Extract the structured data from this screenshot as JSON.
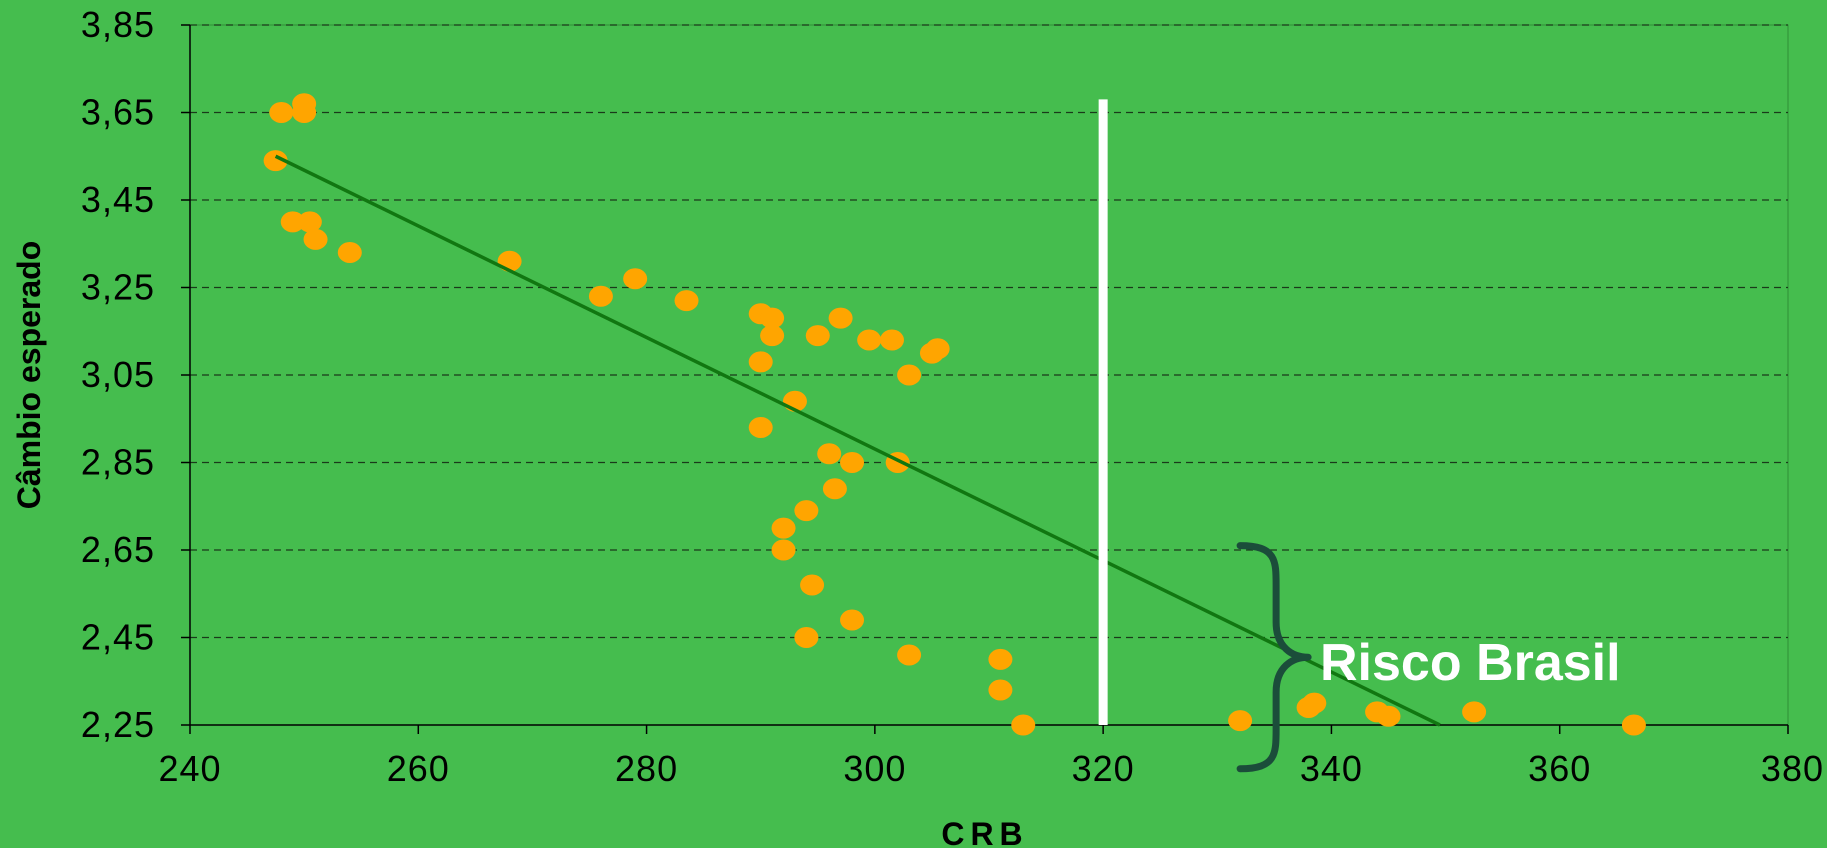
{
  "chart_data": {
    "type": "scatter",
    "title": "",
    "xlabel": "CRB",
    "ylabel": "Câmbio esperado",
    "xlim": [
      240,
      380
    ],
    "ylim": [
      2.25,
      3.85
    ],
    "x_ticks": [
      240,
      260,
      280,
      300,
      320,
      340,
      360,
      380
    ],
    "y_ticks": [
      2.25,
      2.45,
      2.65,
      2.85,
      3.05,
      3.25,
      3.45,
      3.65,
      3.85
    ],
    "x_tick_labels": [
      "240",
      "260",
      "280",
      "300",
      "320",
      "340",
      "360",
      "380"
    ],
    "y_tick_labels": [
      "2,25",
      "2,45",
      "2,65",
      "2,85",
      "3,05",
      "3,25",
      "3,45",
      "3,65",
      "3,85"
    ],
    "grid": "horizontal dashed",
    "legend": "none",
    "points": [
      {
        "x": 248,
        "y": 3.65
      },
      {
        "x": 250,
        "y": 3.67
      },
      {
        "x": 250,
        "y": 3.65
      },
      {
        "x": 247.5,
        "y": 3.54
      },
      {
        "x": 249,
        "y": 3.4
      },
      {
        "x": 250.5,
        "y": 3.4
      },
      {
        "x": 251,
        "y": 3.36
      },
      {
        "x": 254,
        "y": 3.33
      },
      {
        "x": 268,
        "y": 3.31
      },
      {
        "x": 276,
        "y": 3.23
      },
      {
        "x": 279,
        "y": 3.27
      },
      {
        "x": 283.5,
        "y": 3.22
      },
      {
        "x": 290,
        "y": 3.19
      },
      {
        "x": 291,
        "y": 3.18
      },
      {
        "x": 291,
        "y": 3.14
      },
      {
        "x": 290,
        "y": 3.08
      },
      {
        "x": 295,
        "y": 3.14
      },
      {
        "x": 297,
        "y": 3.18
      },
      {
        "x": 299.5,
        "y": 3.13
      },
      {
        "x": 301.5,
        "y": 3.13
      },
      {
        "x": 303,
        "y": 3.05
      },
      {
        "x": 305,
        "y": 3.1
      },
      {
        "x": 305.5,
        "y": 3.11
      },
      {
        "x": 293,
        "y": 2.99
      },
      {
        "x": 290,
        "y": 2.93
      },
      {
        "x": 296,
        "y": 2.87
      },
      {
        "x": 298,
        "y": 2.85
      },
      {
        "x": 302,
        "y": 2.85
      },
      {
        "x": 296.5,
        "y": 2.79
      },
      {
        "x": 294,
        "y": 2.74
      },
      {
        "x": 292,
        "y": 2.7
      },
      {
        "x": 292,
        "y": 2.65
      },
      {
        "x": 294.5,
        "y": 2.57
      },
      {
        "x": 298,
        "y": 2.49
      },
      {
        "x": 294,
        "y": 2.45
      },
      {
        "x": 303,
        "y": 2.41
      },
      {
        "x": 311,
        "y": 2.4
      },
      {
        "x": 311,
        "y": 2.33
      },
      {
        "x": 313,
        "y": 2.25
      },
      {
        "x": 332,
        "y": 2.26
      },
      {
        "x": 338,
        "y": 2.29
      },
      {
        "x": 338.5,
        "y": 2.3
      },
      {
        "x": 344,
        "y": 2.28
      },
      {
        "x": 345,
        "y": 2.27
      },
      {
        "x": 352.5,
        "y": 2.28
      },
      {
        "x": 366.5,
        "y": 2.25
      }
    ],
    "trendline": {
      "x1": 247.5,
      "y1": 3.55,
      "x2": 349.5,
      "y2": 2.25
    },
    "reference_line": {
      "x": 320,
      "y_top": 3.68,
      "y_bottom": 2.25
    },
    "annotation": {
      "text": "Risco Brasil",
      "bracket_y_top": 2.66,
      "bracket_y_bottom": 2.15,
      "bracket_x": 332
    },
    "colors": {
      "background": "#45BD4E",
      "points": "#FFA500",
      "trendline": "#117711",
      "reference_line": "#FFFFFF",
      "bracket": "#1B4D3A",
      "annotation_text": "#FFFFFF",
      "grid": "#1A3A1A",
      "axis": "#000000"
    }
  }
}
